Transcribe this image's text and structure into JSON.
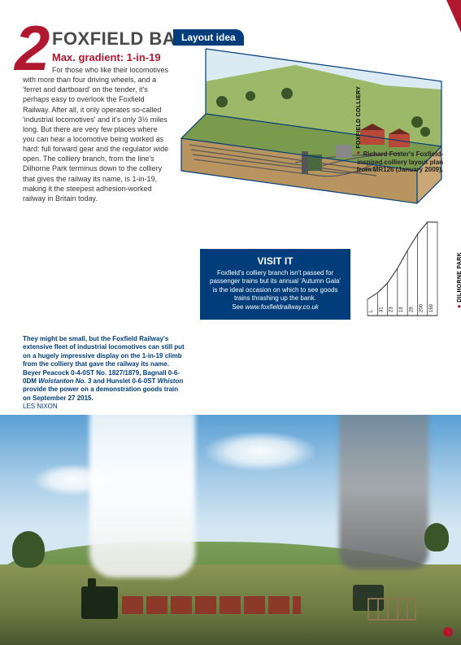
{
  "article": {
    "number": "2",
    "title": "FOXFIELD BANK",
    "subtitle": "Max. gradient: 1-in-19",
    "body": "For those who like their locomotives with more than four driving wheels, and a 'ferret and dartboard' on the tender, it's perhaps easy to overlook the Foxfield Railway. After all, it only operates so-called 'industrial locomotives' and it's only 3½ miles long. But there are very few places where you can hear a locomotive being worked as hard: full forward gear and the regulator wide open. The colliery branch, from the line's Dilhorne Park terminus down to the colliery that gives the railway its name, is 1-in-19, making it the steepest adhesion-worked railway in Britain today."
  },
  "photo_caption": {
    "line1": "They might be small, but the Foxfield Railway's extensive fleet of industrial locomotives can still put on a hugely impressive display on the 1-in-19 climb from the colliery that gave the railway its name. Beyer Peacock 0-4-0ST No. 1827/1879, Bagnall 0-6-0DM ",
    "italic1": "Wolstanton No. 3",
    "line2": " and Hunslet 0-6-0ST ",
    "italic2": "Whiston",
    "line3": " provide the power on a demonstration goods train on September 27 2015.",
    "credit": "LES NIXON"
  },
  "layout_idea": {
    "tab": "Layout idea"
  },
  "diagram_caption": "Richard Foster's Foxfield-inspired colliery layout plan from MR126 (January 2009).",
  "visit": {
    "title": "VISIT IT",
    "text": "Foxfield's colliery branch isn't passed for passenger trains but its annual 'Autumn Gala' is the ideal occasion on which to see goods trains thrashing up the bank.",
    "see": "See ",
    "url": "www.foxfieldrailway.co.uk"
  },
  "gradient_chart": {
    "left_label": "FOXFIELD COLLIERY",
    "right_label": "DILHORNE PARK",
    "left_dot_color": "#b01830",
    "right_dot_color": "#b01830",
    "values": [
      "L",
      "31",
      "23",
      "19",
      "28",
      "200",
      "169"
    ],
    "heights": [
      20,
      28,
      40,
      58,
      80,
      100,
      115
    ],
    "base_h": 120,
    "bar_stroke": "#222222",
    "label_fontsize": 6
  },
  "illustration_colors": {
    "grass": "#9db868",
    "grass_dark": "#7a9a4e",
    "base_side": "#c9a876",
    "base_front": "#b89560",
    "track": "#555555",
    "bldg_red": "#b84838",
    "bldg_grey": "#888888",
    "bldg_green": "#4a6840",
    "sky": "#dceaf4",
    "tree": "#3a5528"
  }
}
